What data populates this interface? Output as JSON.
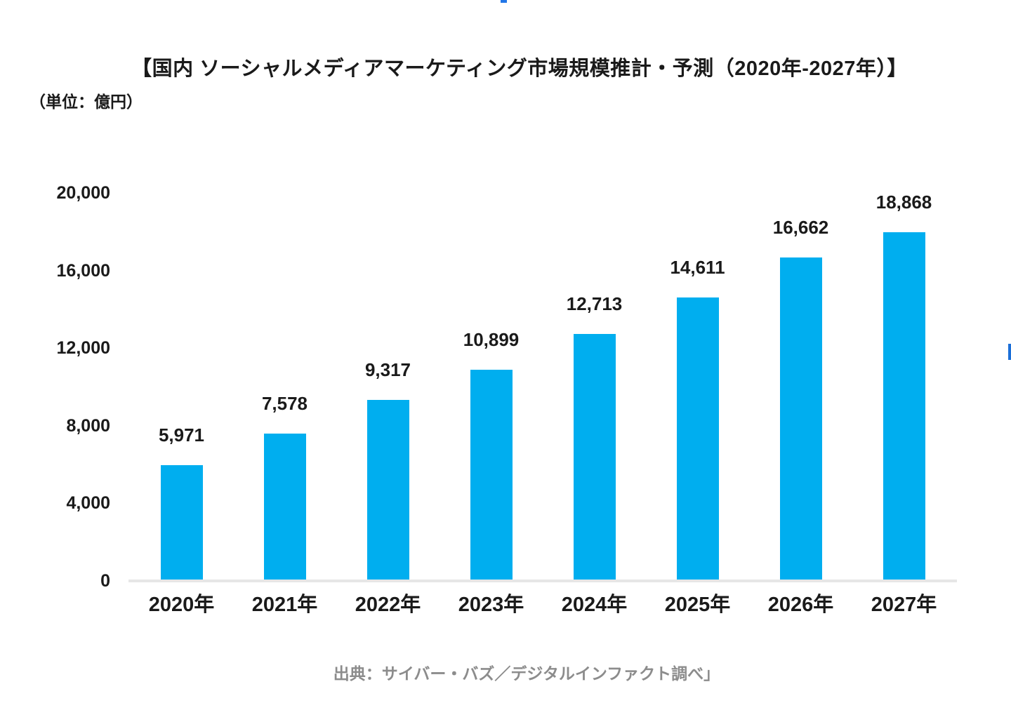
{
  "header": {
    "title": "【国内 ソーシャルメディアマーケティング市場規模推計・予測（2020年-2027年）】",
    "unit_label": "（単位：億円）"
  },
  "chart_data": {
    "type": "bar",
    "title": "【国内 ソーシャルメディアマーケティング市場規模推計・予測（2020年-2027年）】",
    "unit": "億円",
    "categories": [
      "2020年",
      "2021年",
      "2022年",
      "2023年",
      "2024年",
      "2025年",
      "2026年",
      "2027年"
    ],
    "values": [
      5971,
      7578,
      9317,
      10899,
      12713,
      14611,
      16662,
      18868
    ],
    "value_labels": [
      "5,971",
      "7,578",
      "9,317",
      "10,899",
      "12,713",
      "14,611",
      "16,662",
      "18,868"
    ],
    "xlabel": "",
    "ylabel": "",
    "ylim": [
      0,
      20000
    ],
    "yticks": [
      0,
      4000,
      8000,
      12000,
      16000,
      20000
    ],
    "ytick_labels": [
      "0",
      "4,000",
      "8,000",
      "12,000",
      "16,000",
      "20,000"
    ],
    "grid": false,
    "legend": null,
    "bar_color": "#00AEEF"
  },
  "footer": {
    "source": "出典：サイバー・バズ／デジタルインファクト調べ」"
  },
  "colors": {
    "bar": "#00AEEF",
    "axis_line": "#e6e6e6",
    "text": "#1a1a1a",
    "source_text": "#8c8c8c",
    "top_edge_artifact": "#2377e8",
    "right_edge_artifact": "#1b6fd8"
  }
}
